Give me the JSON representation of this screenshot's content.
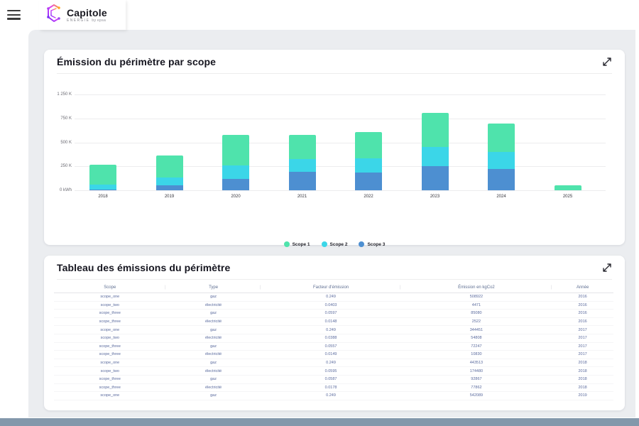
{
  "header": {
    "brand_name": "Capitole",
    "brand_sub": "ENERGIE",
    "brand_by": "by epsa"
  },
  "chart_card": {
    "title": "Émission du périmètre par scope"
  },
  "chart_data": {
    "type": "bar",
    "stacked": true,
    "title": "Émission du périmètre par scope",
    "categories": [
      "2018",
      "2019",
      "2020",
      "2021",
      "2022",
      "2023",
      "2024",
      "2025"
    ],
    "series": [
      {
        "name": "Scope 1",
        "color": "#4FE3AC",
        "values": [
          205000,
          235000,
          315000,
          250000,
          280000,
          350000,
          300000,
          50000
        ]
      },
      {
        "name": "Scope 2",
        "color": "#3BD6E8",
        "values": [
          55000,
          75000,
          140000,
          135000,
          145000,
          205000,
          175000,
          0
        ]
      },
      {
        "name": "Scope 3",
        "color": "#4D8FD1",
        "values": [
          5000,
          55000,
          120000,
          190000,
          185000,
          250000,
          225000,
          0
        ]
      }
    ],
    "stack_order_bottom_to_top": [
      "Scope 3",
      "Scope 2",
      "Scope 1"
    ],
    "y_ticks": [
      "1 250 K",
      "750 K",
      "500 K",
      "250 K",
      "0 kWh"
    ],
    "y_unit": "kWh",
    "ylim": [
      0,
      1000000
    ],
    "grid": true,
    "legend_position": "bottom"
  },
  "table_card": {
    "title": "Tableau des émissions du périmètre",
    "columns": [
      "Scope",
      "Type",
      "Facteur d'émission",
      "Émission en kgCo2",
      "Année"
    ],
    "rows": [
      [
        "scope_one",
        "gaz",
        "0.249",
        "508922",
        "2016"
      ],
      [
        "scope_two",
        "électricité",
        "0.0403",
        "4471",
        "2016"
      ],
      [
        "scope_three",
        "gaz",
        "0.0597",
        "85080",
        "2016"
      ],
      [
        "scope_three",
        "électricité",
        "0.0148",
        "2522",
        "2016"
      ],
      [
        "scope_one",
        "gaz",
        "0.249",
        "344451",
        "2017"
      ],
      [
        "scope_two",
        "électricité",
        "0.0388",
        "54808",
        "2017"
      ],
      [
        "scope_three",
        "gaz",
        "0.0557",
        "72247",
        "2017"
      ],
      [
        "scope_three",
        "électricité",
        "0.0149",
        "10830",
        "2017"
      ],
      [
        "scope_one",
        "gaz",
        "0.249",
        "443513",
        "2018"
      ],
      [
        "scope_two",
        "électricité",
        "0.0595",
        "174480",
        "2018"
      ],
      [
        "scope_three",
        "gaz",
        "0.0587",
        "92867",
        "2018"
      ],
      [
        "scope_three",
        "électricité",
        "0.0178",
        "77862",
        "2018"
      ],
      [
        "scope_one",
        "gaz",
        "0.249",
        "542089",
        "2019"
      ]
    ]
  },
  "colors": {
    "scope1": "#4FE3AC",
    "scope2": "#3BD6E8",
    "scope3": "#4D8FD1",
    "panel_bg": "#ebedf0",
    "bottom_strip": "#8398ab",
    "logo_gradient": [
      "#7b2ff7",
      "#e040fb",
      "#ffa726"
    ]
  }
}
